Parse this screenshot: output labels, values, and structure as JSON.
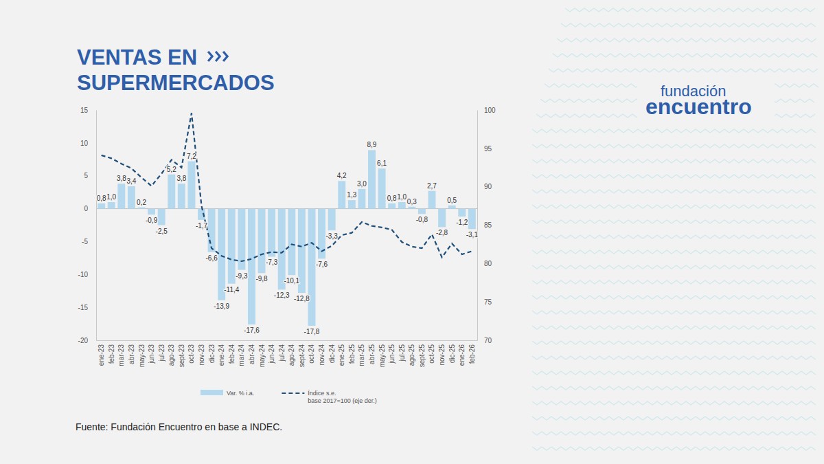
{
  "chart_data": {
    "type": "bar",
    "title": "VENTAS EN SUPERMERCADOS",
    "source": "Fuente: Fundación Encuentro en base a INDEC.",
    "logo": "fundación encuentro",
    "categories": [
      "ene-23",
      "feb-23",
      "mar-23",
      "abr-23",
      "may-23",
      "jun-23",
      "jul-23",
      "ago-23",
      "sept-23",
      "oct-23",
      "nov-23",
      "dic-23",
      "ene-24",
      "feb-24",
      "mar-24",
      "abr-24",
      "may-24",
      "jun-24",
      "jul-24",
      "ago-24",
      "sept-24",
      "oct-24",
      "nov-24",
      "dic-24",
      "ene-25",
      "feb-25",
      "mar-25",
      "abr-25",
      "may-25",
      "jun-25",
      "jul-25",
      "ago-25",
      "sept-25",
      "oct-25",
      "nov-25",
      "dic-25",
      "ene-26",
      "feb-26"
    ],
    "series": [
      {
        "name": "Var. % i.a.",
        "type": "bar",
        "color": "#b4d8ee",
        "values": [
          0.8,
          1.0,
          3.8,
          3.4,
          0.2,
          -0.9,
          -2.5,
          5.2,
          3.8,
          7.2,
          -1.7,
          -6.6,
          -13.9,
          -11.4,
          -9.3,
          -17.6,
          -9.8,
          -7.3,
          -12.3,
          -10.1,
          -12.8,
          -17.8,
          -7.6,
          -3.3,
          4.2,
          1.3,
          3.0,
          8.9,
          6.1,
          0.8,
          1.0,
          0.3,
          -0.8,
          2.7,
          -2.8,
          0.5,
          -1.2,
          -3.1
        ],
        "value_labels": [
          "0,8",
          "1,0",
          "3,8",
          "3,4",
          "0,2",
          "-0,9",
          "-2,5",
          "5,2",
          "3,8",
          "7,2",
          "-1,7",
          "-6,6",
          "-13,9",
          "-11,4",
          "-9,3",
          "-17,6",
          "-9,8",
          "-7,3",
          "-12,3",
          "-10,1",
          "-12,8",
          "-17,8",
          "-7,6",
          "-3,3",
          "4,2",
          "1,3",
          "3,0",
          "8,9",
          "6,1",
          "0,8",
          "1,0",
          "0,3",
          "-0,8",
          "2,7",
          "-2,8",
          "0,5",
          "-1,2",
          "-3,1"
        ]
      },
      {
        "name": "Índice s.e. base 2017=100 (eje der.)",
        "type": "line",
        "axis": "y2",
        "color": "#1f4e79",
        "line_style": "dashed",
        "values": [
          94.1,
          93.7,
          93.0,
          92.4,
          91.2,
          90.1,
          91.7,
          93.5,
          92.5,
          99.6,
          87.5,
          82.0,
          81.0,
          80.5,
          80.3,
          80.6,
          81.2,
          81.5,
          81.4,
          82.5,
          82.2,
          82.7,
          81.6,
          82.3,
          83.7,
          84.0,
          85.4,
          84.9,
          84.7,
          84.4,
          82.8,
          82.2,
          82.0,
          83.8,
          80.8,
          82.6,
          81.2,
          81.6
        ]
      }
    ],
    "ylim": [
      -20,
      15
    ],
    "yticks": [
      -20,
      -15,
      -10,
      -5,
      0,
      5,
      10,
      15
    ],
    "y2lim": [
      70,
      100
    ],
    "y2ticks": [
      70,
      75,
      80,
      85,
      90,
      95,
      100
    ],
    "data_labels": true,
    "legend": "bottom",
    "grid": false
  }
}
